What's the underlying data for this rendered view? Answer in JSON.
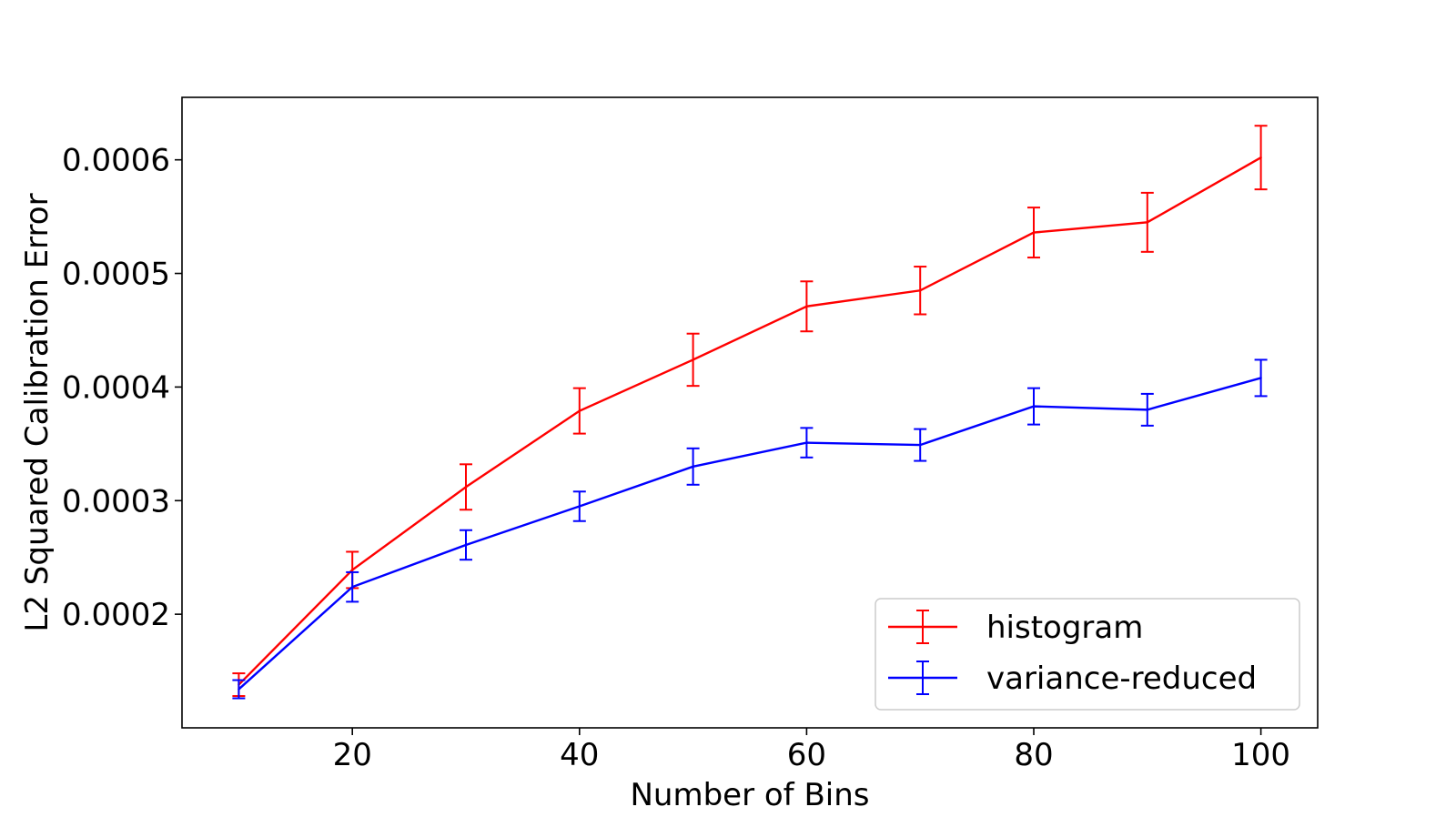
{
  "chart_data": {
    "type": "line",
    "title": "",
    "xlabel": "Number of Bins",
    "ylabel": "L2 Squared Calibration Error",
    "x": [
      10,
      20,
      30,
      40,
      50,
      60,
      70,
      80,
      90,
      100
    ],
    "xlim": [
      5,
      105
    ],
    "ylim": [
      0.0001,
      0.000655
    ],
    "xticks": [
      20,
      40,
      60,
      80,
      100
    ],
    "yticks": [
      0.0002,
      0.0003,
      0.0004,
      0.0005,
      0.0006
    ],
    "xtick_labels": [
      "20",
      "40",
      "60",
      "80",
      "100"
    ],
    "ytick_labels": [
      "0.0002",
      "0.0003",
      "0.0004",
      "0.0005",
      "0.0006"
    ],
    "grid": false,
    "legend_position": "lower-right",
    "series": [
      {
        "name": "histogram",
        "color": "#ff0000",
        "values": [
          0.000138,
          0.000239,
          0.000312,
          0.000379,
          0.000424,
          0.000471,
          0.000485,
          0.000536,
          0.000545,
          0.000602
        ],
        "errors": [
          1e-05,
          1.6e-05,
          2e-05,
          2e-05,
          2.3e-05,
          2.2e-05,
          2.1e-05,
          2.2e-05,
          2.6e-05,
          2.8e-05
        ]
      },
      {
        "name": "variance-reduced",
        "color": "#0000ff",
        "values": [
          0.000134,
          0.000224,
          0.000261,
          0.000295,
          0.00033,
          0.000351,
          0.000349,
          0.000383,
          0.00038,
          0.000408
        ],
        "errors": [
          8e-06,
          1.3e-05,
          1.3e-05,
          1.3e-05,
          1.6e-05,
          1.3e-05,
          1.4e-05,
          1.6e-05,
          1.4e-05,
          1.6e-05
        ]
      }
    ]
  }
}
